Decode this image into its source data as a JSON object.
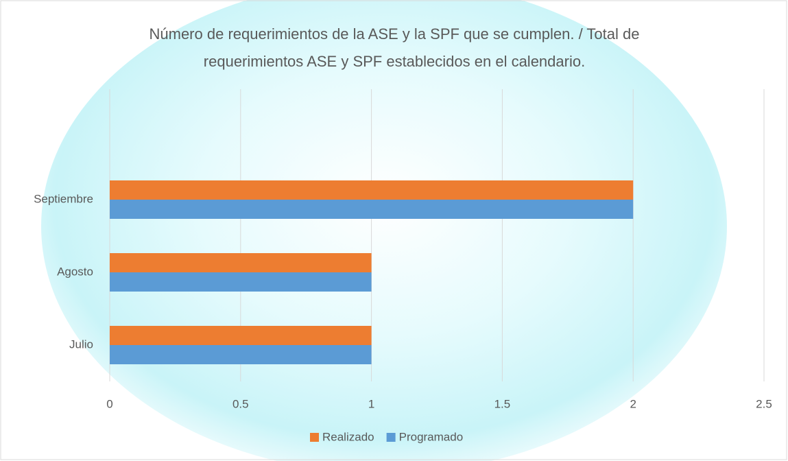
{
  "chart_data": {
    "type": "hbar",
    "title": "Número de requerimientos de la ASE y la SPF que se cumplen. / Total de requerimientos ASE y SPF establecidos en el calendario.",
    "categories": [
      "Julio",
      "Agosto",
      "Septiembre"
    ],
    "series": [
      {
        "name": "Realizado",
        "color": "#ed7d31",
        "values": [
          1,
          1,
          2
        ]
      },
      {
        "name": "Programado",
        "color": "#5b9bd5",
        "values": [
          1,
          1,
          2
        ]
      }
    ],
    "xlim": [
      0,
      2.5
    ],
    "xticks": [
      0,
      0.5,
      1,
      1.5,
      2,
      2.5
    ],
    "grid": true,
    "legend": "bottom"
  }
}
